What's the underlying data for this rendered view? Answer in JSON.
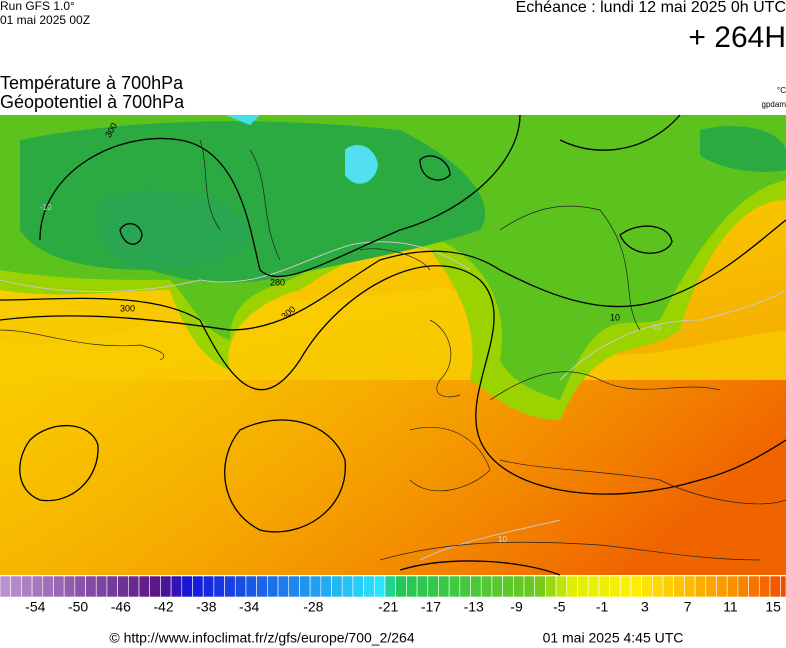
{
  "header": {
    "run": "Run GFS 1.0°",
    "run_date": "01 mai 2025 00Z",
    "valid": "Echéance : lundi 12 mai 2025 0h UTC",
    "lead": "+ 264H"
  },
  "titles": {
    "line1": "Température à 700hPa",
    "line2": "Géopotentiel à 700hPa",
    "unit1": "°C",
    "unit2": "gpdam"
  },
  "map": {
    "contour_labels": [
      "300",
      "280",
      "300",
      "300",
      "-10",
      "10",
      "-10",
      "10"
    ]
  },
  "colorbar": {
    "range": [
      -57.3,
      16.2
    ],
    "ticks": [
      -54,
      -50,
      -46,
      -42,
      -38,
      -34,
      -28,
      -21,
      -17,
      -13,
      -9,
      -5,
      -1,
      3,
      7,
      11,
      15
    ]
  },
  "footer": {
    "source": "© http://www.infoclimat.fr/z/gfs/europe/700_2/264",
    "generated": "01 mai 2025  4:45 UTC"
  }
}
